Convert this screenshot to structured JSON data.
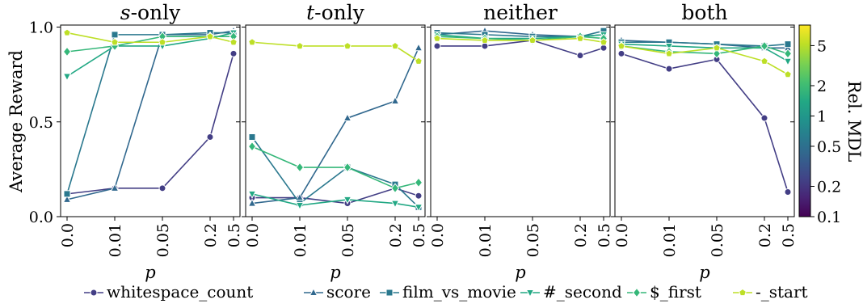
{
  "chart_data": {
    "type": "line",
    "ylabel": "Average Reward",
    "xlabel": "p",
    "x_ticks": [
      "0.0",
      "0.01",
      "0.05",
      "0.2",
      "0.5"
    ],
    "y_ticks": [
      "0.0",
      "0.5",
      "1.0"
    ],
    "ylim": [
      0,
      1
    ],
    "grid": false,
    "legend_position": "bottom",
    "colors": {
      "whitespace_count": "#433e85",
      "score": "#31688e",
      "film_vs_movie": "#2a788e",
      "#_second": "#22a884",
      "$_first": "#35b779",
      "-_start": "#bddf26"
    },
    "colorbar": {
      "label": "Rel. MDL",
      "ticks": [
        "0.1",
        "0.2",
        "0.5",
        "1",
        "2",
        "5"
      ],
      "scale": "log"
    },
    "panels": [
      {
        "title_prefix": "s",
        "title_suffix": "-only",
        "series": [
          {
            "name": "whitespace_count",
            "values": [
              0.12,
              0.15,
              0.15,
              0.42,
              0.86
            ]
          },
          {
            "name": "score",
            "values": [
              0.09,
              0.15,
              0.96,
              0.96,
              0.98
            ]
          },
          {
            "name": "film_vs_movie",
            "values": [
              0.12,
              0.96,
              0.96,
              0.97,
              0.97
            ]
          },
          {
            "name": "#_second",
            "values": [
              0.74,
              0.9,
              0.9,
              0.94,
              0.97
            ]
          },
          {
            "name": "$_first",
            "values": [
              0.87,
              0.9,
              0.95,
              0.95,
              0.95
            ]
          },
          {
            "name": "-_start",
            "values": [
              0.97,
              0.92,
              0.92,
              0.95,
              0.92
            ]
          }
        ]
      },
      {
        "title_prefix": "t",
        "title_suffix": "-only",
        "series": [
          {
            "name": "whitespace_count",
            "values": [
              0.1,
              0.1,
              0.07,
              0.15,
              0.11
            ]
          },
          {
            "name": "score",
            "values": [
              0.07,
              0.1,
              0.52,
              0.61,
              0.89
            ]
          },
          {
            "name": "film_vs_movie",
            "values": [
              0.42,
              0.07,
              0.26,
              0.17,
              0.05
            ]
          },
          {
            "name": "#_second",
            "values": [
              0.12,
              0.06,
              0.09,
              0.07,
              0.05
            ]
          },
          {
            "name": "$_first",
            "values": [
              0.37,
              0.26,
              0.26,
              0.15,
              0.18
            ]
          },
          {
            "name": "-_start",
            "values": [
              0.92,
              0.9,
              0.9,
              0.9,
              0.82
            ]
          }
        ]
      },
      {
        "title_prefix": "",
        "title_suffix": "neither",
        "series": [
          {
            "name": "whitespace_count",
            "values": [
              0.9,
              0.9,
              0.93,
              0.85,
              0.89
            ]
          },
          {
            "name": "score",
            "values": [
              0.96,
              0.98,
              0.96,
              0.95,
              0.96
            ]
          },
          {
            "name": "film_vs_movie",
            "values": [
              0.97,
              0.96,
              0.95,
              0.95,
              0.98
            ]
          },
          {
            "name": "#_second",
            "values": [
              0.96,
              0.94,
              0.94,
              0.95,
              0.96
            ]
          },
          {
            "name": "$_first",
            "values": [
              0.95,
              0.94,
              0.93,
              0.95,
              0.94
            ]
          },
          {
            "name": "-_start",
            "values": [
              0.94,
              0.93,
              0.93,
              0.94,
              0.92
            ]
          }
        ]
      },
      {
        "title_prefix": "",
        "title_suffix": "both",
        "series": [
          {
            "name": "whitespace_count",
            "values": [
              0.86,
              0.78,
              0.83,
              0.52,
              0.13
            ]
          },
          {
            "name": "score",
            "values": [
              0.93,
              0.92,
              0.91,
              0.89,
              0.89
            ]
          },
          {
            "name": "film_vs_movie",
            "values": [
              0.92,
              0.92,
              0.91,
              0.9,
              0.91
            ]
          },
          {
            "name": "#_second",
            "values": [
              0.91,
              0.9,
              0.89,
              0.89,
              0.82
            ]
          },
          {
            "name": "$_first",
            "values": [
              0.9,
              0.87,
              0.86,
              0.9,
              0.86
            ]
          },
          {
            "name": "-_start",
            "values": [
              0.9,
              0.86,
              0.89,
              0.82,
              0.75
            ]
          }
        ]
      }
    ]
  }
}
